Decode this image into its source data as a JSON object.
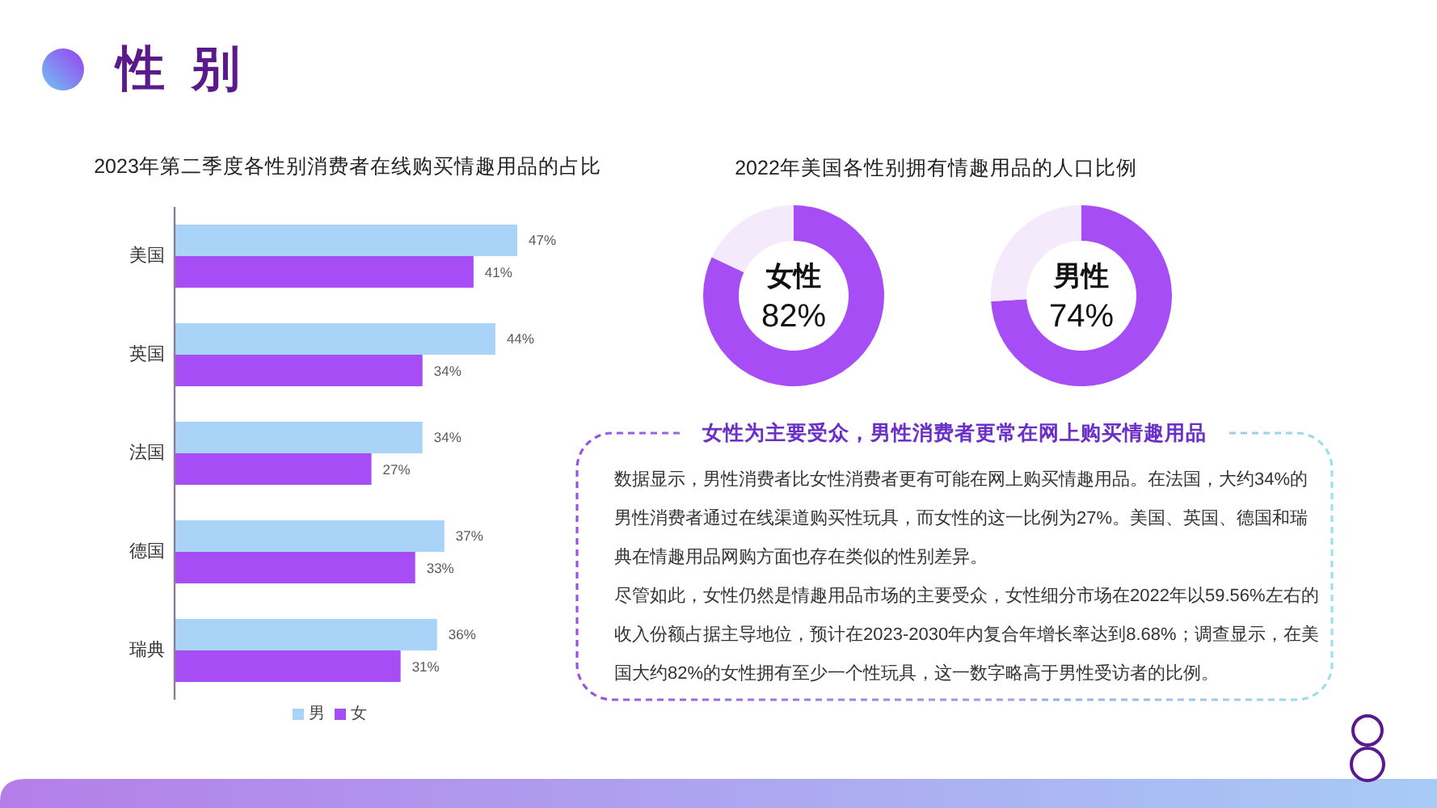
{
  "chart_data": [
    {
      "type": "other",
      "title": "性 别"
    },
    {
      "type": "bar",
      "orientation": "horizontal",
      "title": "2023年第二季度各性别消费者在线购买情趣用品的占比",
      "categories": [
        "美国",
        "英国",
        "法国",
        "德国",
        "瑞典"
      ],
      "series": [
        {
          "name": "男",
          "color": "#a9d3f7",
          "values": [
            47,
            44,
            34,
            37,
            36
          ],
          "value_labels": [
            "47%",
            "44%",
            "34%",
            "37%",
            "36%"
          ]
        },
        {
          "name": "女",
          "color": "#a64df5",
          "values": [
            41,
            34,
            27,
            33,
            31
          ],
          "value_labels": [
            "41%",
            "34%",
            "27%",
            "33%",
            "31%"
          ]
        }
      ],
      "legend": "bottom",
      "tick_labels": "y"
    },
    {
      "type": "donut",
      "title": "2022年美国各性别拥有情趣用品的人口比例",
      "categories": [
        "女性",
        null
      ],
      "values": [
        82,
        18
      ],
      "colors": [
        "#a64df5",
        "#f4eafc"
      ],
      "value_labels": [
        "82%",
        null
      ]
    },
    {
      "type": "donut",
      "categories": [
        "男性",
        null
      ],
      "values": [
        74,
        26
      ],
      "colors": [
        "#a64df5",
        "#f4eafc"
      ],
      "value_labels": [
        "74%",
        null
      ]
    },
    {
      "type": "other",
      "title": "女性为主要受众，男性消费者更常在网上购买情趣用品",
      "annotations": [
        "数据显示，男性消费者比女性消费者更有可能在网上购买情趣用品。在法国，大约34%的男性消费者通过在线渠道购买性玩具，而女性的这一比例为27%。美国、英国、德国和瑞典在情趣用品网购方面也存在类似的性别差异。",
        "尽管如此，女性仍然是情趣用品市场的主要受众，女性细分市场在2022年以59.56%左右的收入份额占据主导地位，预计在2023-2030年内复合年增长率达到8.68%；调查显示，在美国大约82%的女性拥有至少一个性玩具，这一数字略高于男性受访者的比例。"
      ]
    }
  ]
}
